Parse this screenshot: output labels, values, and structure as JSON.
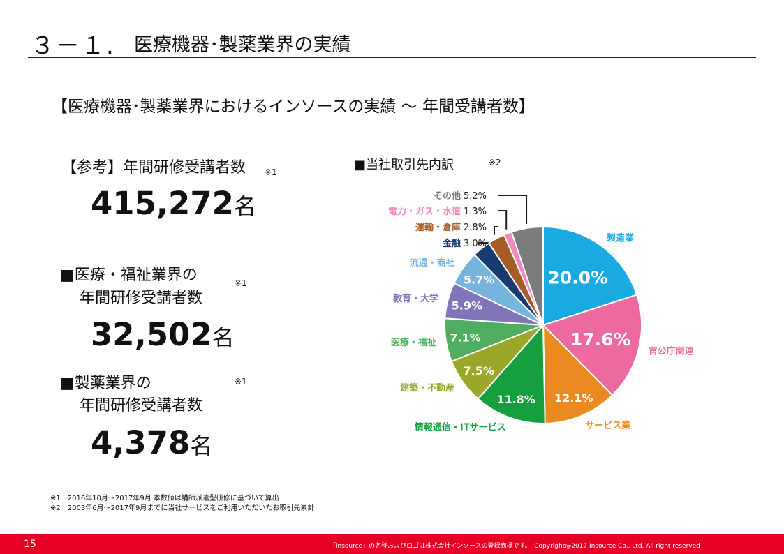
{
  "heading": {
    "number": "３－１.",
    "title": "医療機器･製薬業界の実績"
  },
  "subtitle": "【医療機器･製薬業界におけるインソースの実績 ～ 年間受講者数】",
  "stats": {
    "reference_label": "【参考】年間研修受講者数",
    "reference_mark": "※1",
    "reference_value": "415,272",
    "unit": "名",
    "medical_label_line1": "■医療・福祉業界の",
    "medical_label_line2": "年間研修受講者数",
    "medical_mark": "※1",
    "medical_value": "32,502",
    "pharma_label_line1": "■製薬業界の",
    "pharma_label_line2": "年間研修受講者数",
    "pharma_mark": "※1",
    "pharma_value": "4,378"
  },
  "chart_heading": {
    "title": "■当社取引先内訳",
    "mark": "※2"
  },
  "chart_data": {
    "type": "pie",
    "title": "■当社取引先内訳",
    "slices": [
      {
        "label": "製造業",
        "value": 20.0,
        "value_label": "20.0%",
        "color": "#1aaae2"
      },
      {
        "label": "官公庁関連",
        "value": 17.6,
        "value_label": "17.6%",
        "color": "#ec6aa0"
      },
      {
        "label": "サービス業",
        "value": 12.1,
        "value_label": "12.1%",
        "color": "#ec8a22"
      },
      {
        "label": "情報通信・ITサービス",
        "value": 11.8,
        "value_label": "11.8%",
        "color": "#159f3f"
      },
      {
        "label": "建築・不動産",
        "value": 7.5,
        "value_label": "7.5%",
        "color": "#9aa729"
      },
      {
        "label": "医療・福祉",
        "value": 7.1,
        "value_label": "7.1%",
        "color": "#4ead5e"
      },
      {
        "label": "教育・大学",
        "value": 5.9,
        "value_label": "5.9%",
        "color": "#8174b8"
      },
      {
        "label": "流通・商社",
        "value": 5.7,
        "value_label": "5.7%",
        "color": "#77b4dd"
      },
      {
        "label": "金融",
        "value": 3.0,
        "value_label": "3.0%",
        "color": "#183c6d"
      },
      {
        "label": "運輸・倉庫",
        "value": 2.8,
        "value_label": "2.8%",
        "color": "#a55c28"
      },
      {
        "label": "電力・ガス・水道",
        "value": 1.3,
        "value_label": "1.3%",
        "color": "#ee88bd"
      },
      {
        "label": "その他",
        "value": 5.2,
        "value_label": "5.2%",
        "color": "#7b7b7b"
      }
    ]
  },
  "notes": [
    "※1　2016年10月～2017年9月  本数値は講師派遣型研修に基づいて算出",
    "※2　2003年6月～2017年9月までに当社サービスをご利用いただいたお取引先累計"
  ],
  "footer": {
    "page": "15",
    "copyright": "「insource」の名称およびロゴは株式会社インソースの登録商標です。　Copyright@2017 Insource Co., Ltd. All right reserved"
  }
}
